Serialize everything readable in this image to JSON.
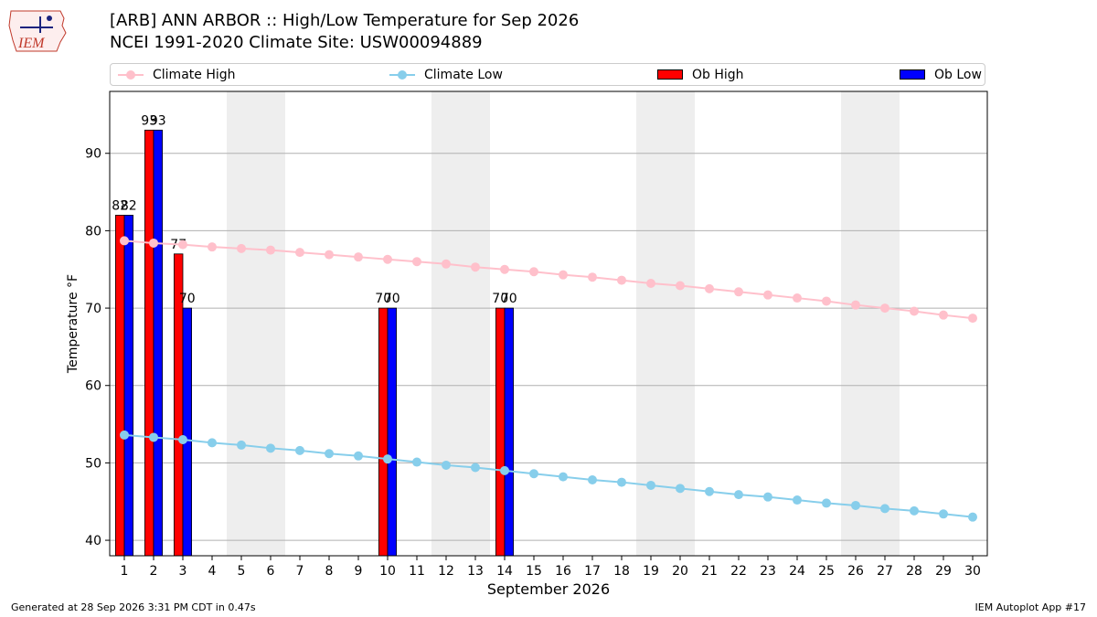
{
  "header": {
    "title_line1": "[ARB] ANN ARBOR :: High/Low Temperature for Sep 2026",
    "title_line2": "NCEI 1991-2020 Climate Site: USW00094889",
    "logo_text": "IEM"
  },
  "legend": {
    "climate_high": "Climate High",
    "climate_low": "Climate Low",
    "ob_high": "Ob High",
    "ob_low": "Ob Low"
  },
  "colors": {
    "climate_high": "#ffc0cb",
    "climate_low": "#87ceeb",
    "ob_high": "#ff0000",
    "ob_low": "#0000ff",
    "weekend_band": "#eeeeee",
    "grid": "#b0b0b0"
  },
  "footer": {
    "left": "Generated at 28 Sep 2026 3:31 PM CDT in 0.47s",
    "right": "IEM Autoplot App #17"
  },
  "chart_data": {
    "type": "bar",
    "xlabel": "September 2026",
    "ylabel": "Temperature °F",
    "xlim": [
      0.5,
      30.5
    ],
    "ylim": [
      38,
      98
    ],
    "yticks": [
      40,
      50,
      60,
      70,
      80,
      90
    ],
    "categories": [
      1,
      2,
      3,
      4,
      5,
      6,
      7,
      8,
      9,
      10,
      11,
      12,
      13,
      14,
      15,
      16,
      17,
      18,
      19,
      20,
      21,
      22,
      23,
      24,
      25,
      26,
      27,
      28,
      29,
      30
    ],
    "weekend_bands": [
      [
        5,
        6
      ],
      [
        12,
        13
      ],
      [
        19,
        20
      ],
      [
        26,
        27
      ]
    ],
    "grid": "horizontal",
    "legend_position": "top",
    "series": [
      {
        "name": "Climate High",
        "kind": "line",
        "values": [
          78.7,
          78.4,
          78.2,
          77.9,
          77.7,
          77.5,
          77.2,
          76.9,
          76.6,
          76.3,
          76.0,
          75.7,
          75.3,
          75.0,
          74.7,
          74.3,
          74.0,
          73.6,
          73.2,
          72.9,
          72.5,
          72.1,
          71.7,
          71.3,
          70.9,
          70.4,
          70.0,
          69.6,
          69.1,
          68.7
        ]
      },
      {
        "name": "Climate Low",
        "kind": "line",
        "values": [
          53.6,
          53.3,
          53.0,
          52.6,
          52.3,
          51.9,
          51.6,
          51.2,
          50.9,
          50.5,
          50.1,
          49.7,
          49.4,
          49.0,
          48.6,
          48.2,
          47.8,
          47.5,
          47.1,
          46.7,
          46.3,
          45.9,
          45.6,
          45.2,
          44.8,
          44.5,
          44.1,
          43.8,
          43.4,
          43.0
        ]
      },
      {
        "name": "Ob High",
        "kind": "bar",
        "values": [
          82,
          93,
          77,
          null,
          null,
          null,
          null,
          null,
          null,
          70,
          null,
          null,
          null,
          70,
          null,
          null,
          null,
          null,
          null,
          null,
          null,
          null,
          null,
          null,
          null,
          null,
          null,
          null,
          null,
          null
        ]
      },
      {
        "name": "Ob Low",
        "kind": "bar",
        "values": [
          82,
          93,
          70,
          null,
          null,
          null,
          null,
          null,
          null,
          70,
          null,
          null,
          null,
          70,
          null,
          null,
          null,
          null,
          null,
          null,
          null,
          null,
          null,
          null,
          null,
          null,
          null,
          null,
          null,
          null
        ]
      }
    ]
  }
}
